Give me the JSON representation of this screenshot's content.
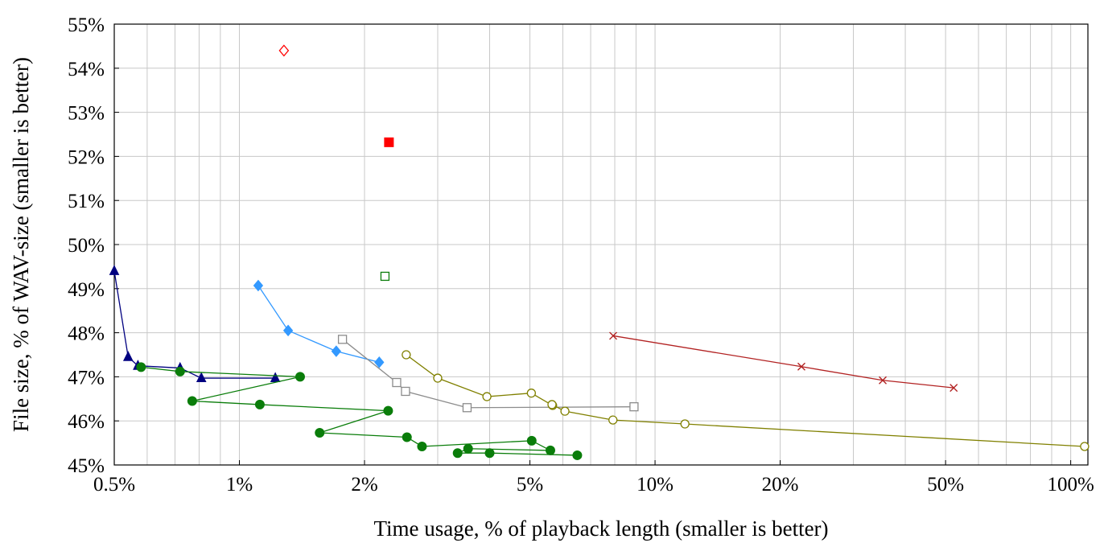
{
  "chart_data": {
    "type": "scatter",
    "title": "",
    "xlabel": "Time usage, % of playback length (smaller is better)",
    "ylabel": "File size, % of WAV-size (smaller is better)",
    "xscale": "log",
    "xlim": [
      0.5,
      110
    ],
    "ylim": [
      45,
      55
    ],
    "grid": true,
    "legend": "none",
    "xticks": [
      {
        "value": 0.5,
        "label": "0.5%"
      },
      {
        "value": 1,
        "label": "1%"
      },
      {
        "value": 2,
        "label": "2%"
      },
      {
        "value": 5,
        "label": "5%"
      },
      {
        "value": 10,
        "label": "10%"
      },
      {
        "value": 20,
        "label": "20%"
      },
      {
        "value": 50,
        "label": "50%"
      },
      {
        "value": 100,
        "label": "100%"
      }
    ],
    "yticks": [
      {
        "value": 45,
        "label": "45%"
      },
      {
        "value": 46,
        "label": "46%"
      },
      {
        "value": 47,
        "label": "47%"
      },
      {
        "value": 48,
        "label": "48%"
      },
      {
        "value": 49,
        "label": "49%"
      },
      {
        "value": 50,
        "label": "50%"
      },
      {
        "value": 51,
        "label": "51%"
      },
      {
        "value": 52,
        "label": "52%"
      },
      {
        "value": 53,
        "label": "53%"
      },
      {
        "value": 54,
        "label": "54%"
      },
      {
        "value": 55,
        "label": "55%"
      }
    ],
    "series": [
      {
        "color": "#000080",
        "marker": "triangle",
        "line": true,
        "x": [
          0.5,
          0.54,
          0.57,
          0.72,
          0.81,
          1.22
        ],
        "y": [
          49.4,
          47.45,
          47.25,
          47.2,
          46.97,
          46.97
        ]
      },
      {
        "color": "#0a7d0a",
        "marker": "circle-filled",
        "line": true,
        "x": [
          0.58,
          0.72,
          1.4,
          0.77,
          1.12,
          2.28,
          1.56,
          2.53,
          2.75,
          5.05,
          5.6,
          3.55,
          3.35,
          4.0,
          6.5
        ],
        "y": [
          47.22,
          47.12,
          47.0,
          46.45,
          46.37,
          46.23,
          45.73,
          45.63,
          45.42,
          45.55,
          45.33,
          45.37,
          45.27,
          45.27,
          45.22
        ]
      },
      {
        "color": "#3399ff",
        "marker": "diamond-filled",
        "line": true,
        "x": [
          1.11,
          1.31,
          1.71,
          2.17
        ],
        "y": [
          49.07,
          48.05,
          47.58,
          47.33
        ]
      },
      {
        "color": "#8c8c8c",
        "marker": "square-open",
        "line": true,
        "x": [
          1.77,
          2.39,
          2.51,
          3.53,
          8.9
        ],
        "y": [
          47.85,
          46.87,
          46.67,
          46.3,
          46.32
        ]
      },
      {
        "color": "#808000",
        "marker": "circle-open",
        "line": true,
        "x": [
          2.52,
          3.0,
          3.94,
          5.04,
          5.67,
          5.65,
          6.07,
          7.92,
          11.8,
          108.0
        ],
        "y": [
          47.5,
          46.97,
          46.55,
          46.63,
          46.35,
          46.37,
          46.22,
          46.02,
          45.93,
          45.42
        ]
      },
      {
        "color": "#b22222",
        "marker": "cross",
        "line": true,
        "x": [
          7.93,
          22.5,
          35.3,
          52.3
        ],
        "y": [
          47.93,
          47.23,
          46.92,
          46.75
        ]
      },
      {
        "color": "#ff0000",
        "marker": "diamond-open",
        "line": false,
        "x": [
          1.28
        ],
        "y": [
          54.4
        ]
      },
      {
        "color": "#ff0000",
        "marker": "square-filled",
        "line": false,
        "x": [
          2.29
        ],
        "y": [
          52.32
        ]
      },
      {
        "color": "#0a7d0a",
        "marker": "square-open",
        "line": false,
        "x": [
          2.24
        ],
        "y": [
          49.28
        ]
      }
    ]
  }
}
